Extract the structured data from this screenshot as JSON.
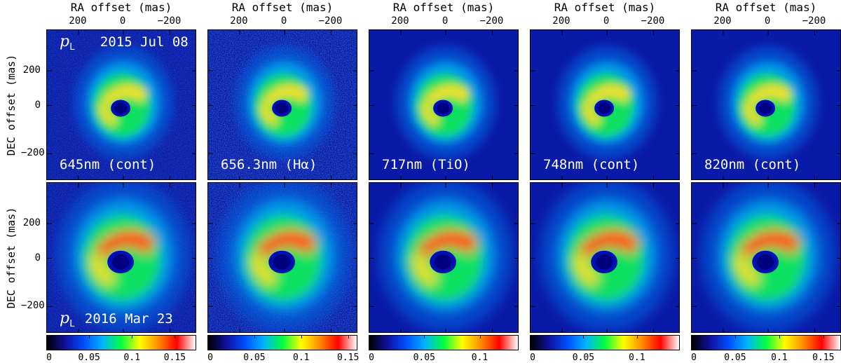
{
  "top_axis": {
    "title": "RA offset (mas)",
    "tick_labels": [
      "200",
      "0",
      "−200"
    ]
  },
  "y_axis": {
    "title": "DEC offset (mas)",
    "tick_labels": [
      "200",
      "0",
      "−200"
    ]
  },
  "rows": [
    {
      "epoch_symbol": "p",
      "epoch_subscript": "L",
      "epoch": "2015 Jul 08"
    },
    {
      "epoch_symbol": "p",
      "epoch_subscript": "L",
      "epoch": "2016 Mar 23"
    }
  ],
  "filters": [
    {
      "label": "645nm (cont)"
    },
    {
      "label": "656.3nm (Hα)"
    },
    {
      "label": "717nm (TiO)"
    },
    {
      "label": "748nm (cont)"
    },
    {
      "label": "820nm (cont)"
    }
  ],
  "colorbars": [
    {
      "ticks": [
        "0",
        "0.05",
        "0.1",
        "0.15"
      ],
      "values": [
        0,
        0.05,
        0.1,
        0.15
      ],
      "max": 0.175
    },
    {
      "ticks": [
        "0",
        "0.05",
        "0.1",
        "0.15"
      ],
      "values": [
        0,
        0.05,
        0.1,
        0.15
      ],
      "max": 0.16
    },
    {
      "ticks": [
        "0",
        "0.05",
        "0.1"
      ],
      "values": [
        0,
        0.05,
        0.1
      ],
      "max": 0.135
    },
    {
      "ticks": [
        "0",
        "0.05",
        "0.1"
      ],
      "values": [
        0,
        0.05,
        0.1
      ],
      "max": 0.14
    },
    {
      "ticks": [
        "0",
        "0.05",
        "0.1",
        "0.15"
      ],
      "values": [
        0,
        0.05,
        0.1,
        0.15
      ],
      "max": 0.17
    }
  ],
  "colors": {
    "background_low": "#0a1aa8",
    "colormap": [
      "#000000",
      "#1010a0",
      "#0050ff",
      "#00b4ff",
      "#00ff40",
      "#ffff00",
      "#ff8c00",
      "#ff0000",
      "#ffffff"
    ]
  }
}
